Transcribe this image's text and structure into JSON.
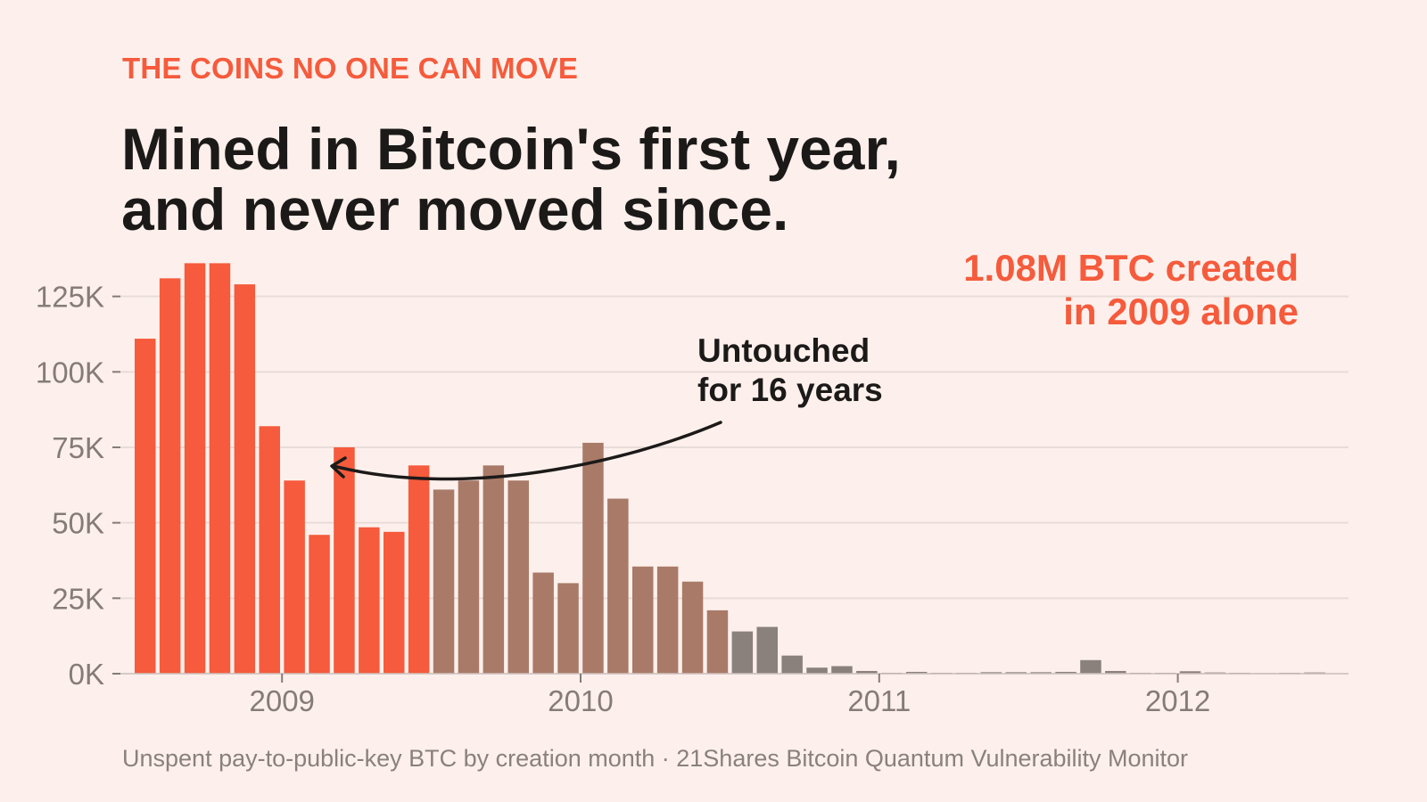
{
  "header": {
    "kicker": "THE COINS NO ONE CAN MOVE",
    "title_line1": "Mined in Bitcoin's first year,",
    "title_line2": "and never moved since."
  },
  "callout": {
    "line1": "1.08M BTC created",
    "line2": "in 2009 alone"
  },
  "annotation": {
    "line1": "Untouched",
    "line2": "for 16 years"
  },
  "footer": {
    "source": "Unspent pay-to-public-key BTC by creation month · 21Shares Bitcoin Quantum Vulnerability Monitor"
  },
  "colors": {
    "year_2009": "#f55b3c",
    "year_2010_early": "#a97a68",
    "later": "#8a807c",
    "grid": "#e8dcd8",
    "axis_text": "#857b77"
  },
  "chart_data": {
    "type": "bar",
    "title": "",
    "xlabel": "",
    "ylabel": "",
    "ylim": [
      0,
      137000
    ],
    "y_ticks": [
      {
        "value": 0,
        "label": "0K"
      },
      {
        "value": 25000,
        "label": "25K"
      },
      {
        "value": 50000,
        "label": "50K"
      },
      {
        "value": 75000,
        "label": "75K"
      },
      {
        "value": 100000,
        "label": "100K"
      },
      {
        "value": 125000,
        "label": "125K"
      }
    ],
    "x_ticks": [
      {
        "label": "2009",
        "month_index": 6
      },
      {
        "label": "2010",
        "month_index": 18
      },
      {
        "label": "2011",
        "month_index": 30
      },
      {
        "label": "2012",
        "month_index": 42
      }
    ],
    "grid": true,
    "series": [
      {
        "values": [
          111000,
          131000,
          136000,
          136000,
          129000,
          82000,
          64000,
          46000,
          75000,
          48500,
          47000,
          69000,
          61000,
          64000,
          69000,
          64000,
          33500,
          30000,
          76500,
          58000,
          35500,
          35500,
          30500,
          21000,
          14000,
          15500,
          6000,
          2000,
          2500,
          900,
          300,
          600,
          300,
          300,
          500,
          500,
          500,
          600,
          4500,
          900,
          300,
          300,
          800,
          400,
          300,
          200,
          300,
          400
        ]
      }
    ],
    "color_groups": [
      "year_2009",
      "year_2009",
      "year_2009",
      "year_2009",
      "year_2009",
      "year_2009",
      "year_2009",
      "year_2009",
      "year_2009",
      "year_2009",
      "year_2009",
      "year_2009",
      "year_2010_early",
      "year_2010_early",
      "year_2010_early",
      "year_2010_early",
      "year_2010_early",
      "year_2010_early",
      "year_2010_early",
      "year_2010_early",
      "year_2010_early",
      "year_2010_early",
      "year_2010_early",
      "year_2010_early",
      "later",
      "later",
      "later",
      "later",
      "later",
      "later",
      "later",
      "later",
      "later",
      "later",
      "later",
      "later",
      "later",
      "later",
      "later",
      "later",
      "later",
      "later",
      "later",
      "later",
      "later",
      "later",
      "later",
      "later"
    ]
  }
}
